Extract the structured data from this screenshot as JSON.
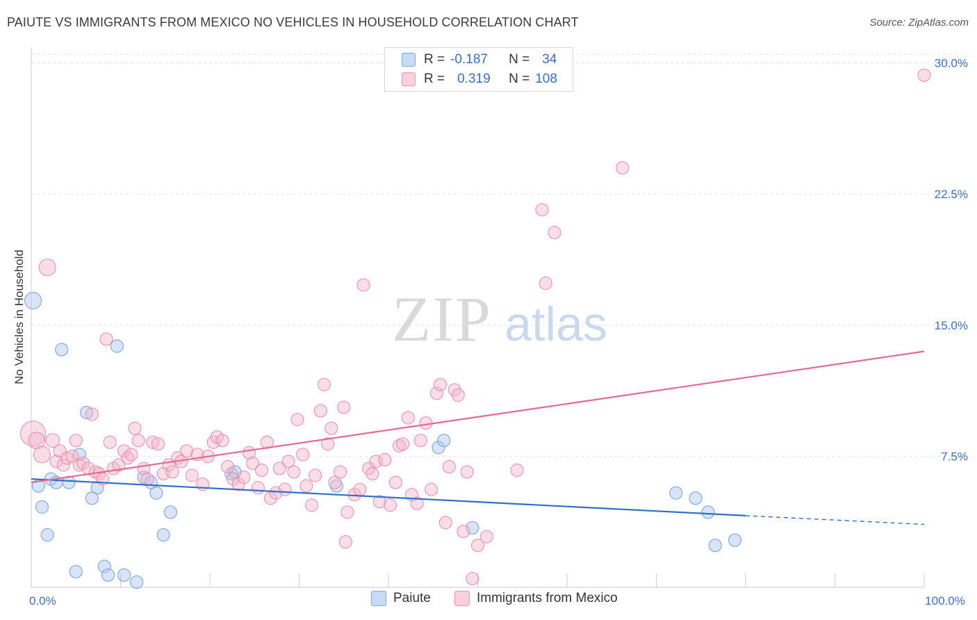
{
  "title": "PAIUTE VS IMMIGRANTS FROM MEXICO NO VEHICLES IN HOUSEHOLD CORRELATION CHART",
  "source": "Source: ZipAtlas.com",
  "watermark": {
    "zip": "ZIP",
    "atlas": "atlas"
  },
  "legend": {
    "rows": [
      {
        "r_label": "R =",
        "r_value": "-0.187",
        "n_label": "N =",
        "n_value": "34",
        "color": "#aac6ee"
      },
      {
        "r_label": "R =",
        "r_value": "0.319",
        "n_label": "N =",
        "n_value": "108",
        "color": "#f4b6c9"
      }
    ]
  },
  "bottom_legend": [
    {
      "label": "Paiute",
      "color": "#aac6ee"
    },
    {
      "label": "Immigrants from Mexico",
      "color": "#f4b6c9"
    }
  ],
  "chart_data": {
    "type": "scatter",
    "title": "PAIUTE VS IMMIGRANTS FROM MEXICO NO VEHICLES IN HOUSEHOLD CORRELATION CHART",
    "xlabel": "",
    "ylabel": "No Vehicles in Household",
    "xlim": [
      0,
      100
    ],
    "ylim": [
      0,
      30.5
    ],
    "x_tick_labels": [
      {
        "value": 0,
        "label": "0.0%"
      },
      {
        "value": 100,
        "label": "100.0%"
      }
    ],
    "y_tick_labels": [
      {
        "value": 7.5,
        "label": "7.5%"
      },
      {
        "value": 15.0,
        "label": "15.0%"
      },
      {
        "value": 22.5,
        "label": "22.5%"
      },
      {
        "value": 30.0,
        "label": "30.0%"
      }
    ],
    "grid": true,
    "legend_position": "top-center",
    "series": [
      {
        "name": "Paiute",
        "color": "#aac6ee",
        "stroke": "#6f9ee0",
        "trend_color": "#2f6fc6",
        "trend": {
          "x0": 0,
          "y0": 6.2,
          "x1": 80,
          "y1": 4.1,
          "dash_to_x": 100,
          "dash_to_y": 3.6
        },
        "points": [
          [
            0.2,
            16.4,
            12
          ],
          [
            0.8,
            5.8,
            9
          ],
          [
            1.2,
            4.6,
            9
          ],
          [
            1.8,
            3.0,
            9
          ],
          [
            2.2,
            6.2,
            9
          ],
          [
            2.8,
            6.0,
            9
          ],
          [
            3.4,
            13.6,
            9
          ],
          [
            4.2,
            6.0,
            9
          ],
          [
            5.0,
            0.9,
            9
          ],
          [
            6.2,
            10.0,
            9
          ],
          [
            6.8,
            5.1,
            9
          ],
          [
            7.4,
            5.7,
            9
          ],
          [
            8.2,
            1.2,
            9
          ],
          [
            8.6,
            0.7,
            9
          ],
          [
            9.6,
            13.8,
            9
          ],
          [
            10.4,
            0.7,
            9
          ],
          [
            11.8,
            0.3,
            9
          ],
          [
            12.6,
            6.3,
            9
          ],
          [
            13.4,
            6.0,
            9
          ],
          [
            14.0,
            5.4,
            9
          ],
          [
            14.8,
            3.0,
            9
          ],
          [
            15.6,
            4.3,
            9
          ],
          [
            22.4,
            6.5,
            9
          ],
          [
            22.8,
            6.6,
            9
          ],
          [
            34.2,
            5.8,
            9
          ],
          [
            45.6,
            8.0,
            9
          ],
          [
            46.2,
            8.4,
            9
          ],
          [
            49.4,
            3.4,
            9
          ],
          [
            72.2,
            5.4,
            9
          ],
          [
            74.4,
            5.1,
            9
          ],
          [
            75.8,
            4.3,
            9
          ],
          [
            76.6,
            2.4,
            9
          ],
          [
            78.8,
            2.7,
            9
          ],
          [
            5.4,
            7.6,
            9
          ]
        ]
      },
      {
        "name": "Immigrants from Mexico",
        "color": "#f4b6c9",
        "stroke": "#e98aa8",
        "trend_color": "#e46a93",
        "trend": {
          "x0": 0,
          "y0": 6.0,
          "x1": 100,
          "y1": 13.5
        },
        "points": [
          [
            0.2,
            8.8,
            18
          ],
          [
            0.6,
            8.4,
            12
          ],
          [
            1.2,
            7.6,
            12
          ],
          [
            1.8,
            18.3,
            12
          ],
          [
            2.4,
            8.4,
            10
          ],
          [
            2.8,
            7.2,
            9
          ],
          [
            3.2,
            7.8,
            9
          ],
          [
            3.6,
            7.0,
            9
          ],
          [
            4.0,
            7.4,
            9
          ],
          [
            4.6,
            7.5,
            9
          ],
          [
            5.0,
            8.4,
            9
          ],
          [
            5.4,
            7.0,
            9
          ],
          [
            5.8,
            7.1,
            9
          ],
          [
            6.4,
            6.8,
            9
          ],
          [
            6.8,
            9.9,
            9
          ],
          [
            7.2,
            6.6,
            9
          ],
          [
            7.6,
            6.5,
            9
          ],
          [
            8.0,
            6.2,
            9
          ],
          [
            8.4,
            14.2,
            9
          ],
          [
            8.8,
            8.3,
            9
          ],
          [
            9.2,
            6.8,
            9
          ],
          [
            9.8,
            7.0,
            9
          ],
          [
            10.4,
            7.8,
            9
          ],
          [
            10.8,
            7.4,
            9
          ],
          [
            11.2,
            7.6,
            9
          ],
          [
            11.6,
            9.1,
            9
          ],
          [
            12.0,
            8.4,
            9
          ],
          [
            12.6,
            6.8,
            9
          ],
          [
            13.0,
            6.2,
            9
          ],
          [
            13.6,
            8.3,
            9
          ],
          [
            14.2,
            8.2,
            9
          ],
          [
            14.8,
            6.5,
            9
          ],
          [
            15.4,
            7.0,
            9
          ],
          [
            15.8,
            6.6,
            9
          ],
          [
            16.4,
            7.4,
            9
          ],
          [
            16.8,
            7.2,
            9
          ],
          [
            17.4,
            7.8,
            9
          ],
          [
            18.0,
            6.4,
            9
          ],
          [
            18.6,
            7.6,
            9
          ],
          [
            19.2,
            5.9,
            9
          ],
          [
            19.8,
            7.5,
            9
          ],
          [
            20.4,
            8.3,
            9
          ],
          [
            20.8,
            8.6,
            9
          ],
          [
            21.4,
            8.4,
            9
          ],
          [
            22.0,
            6.9,
            9
          ],
          [
            22.6,
            6.2,
            9
          ],
          [
            23.2,
            5.9,
            9
          ],
          [
            23.8,
            6.3,
            9
          ],
          [
            24.4,
            7.7,
            9
          ],
          [
            24.8,
            7.1,
            9
          ],
          [
            25.4,
            5.7,
            9
          ],
          [
            25.8,
            6.7,
            9
          ],
          [
            26.4,
            8.3,
            9
          ],
          [
            26.8,
            5.1,
            9
          ],
          [
            27.4,
            5.4,
            9
          ],
          [
            27.8,
            6.8,
            9
          ],
          [
            28.4,
            5.6,
            9
          ],
          [
            28.8,
            7.2,
            9
          ],
          [
            29.4,
            6.6,
            9
          ],
          [
            29.8,
            9.6,
            9
          ],
          [
            30.4,
            7.6,
            9
          ],
          [
            30.8,
            5.8,
            9
          ],
          [
            31.4,
            4.7,
            9
          ],
          [
            31.8,
            6.4,
            9
          ],
          [
            32.4,
            10.1,
            9
          ],
          [
            32.8,
            11.6,
            9
          ],
          [
            33.2,
            8.2,
            9
          ],
          [
            33.6,
            9.1,
            9
          ],
          [
            34.0,
            6.0,
            9
          ],
          [
            34.6,
            6.6,
            9
          ],
          [
            35.0,
            10.3,
            9
          ],
          [
            35.4,
            4.3,
            9
          ],
          [
            36.2,
            5.3,
            9
          ],
          [
            36.8,
            5.6,
            9
          ],
          [
            37.2,
            17.3,
            9
          ],
          [
            37.8,
            6.8,
            9
          ],
          [
            38.2,
            6.5,
            9
          ],
          [
            38.6,
            7.2,
            9
          ],
          [
            39.0,
            4.9,
            9
          ],
          [
            39.6,
            7.3,
            9
          ],
          [
            40.2,
            4.7,
            9
          ],
          [
            40.8,
            6.0,
            9
          ],
          [
            41.2,
            8.1,
            9
          ],
          [
            41.6,
            8.2,
            9
          ],
          [
            42.2,
            9.7,
            9
          ],
          [
            42.6,
            5.3,
            9
          ],
          [
            43.2,
            4.8,
            9
          ],
          [
            43.6,
            8.4,
            9
          ],
          [
            44.2,
            9.4,
            9
          ],
          [
            44.8,
            5.6,
            9
          ],
          [
            45.4,
            11.1,
            9
          ],
          [
            45.8,
            11.6,
            9
          ],
          [
            46.4,
            3.7,
            9
          ],
          [
            46.8,
            6.9,
            9
          ],
          [
            47.4,
            11.3,
            9
          ],
          [
            47.8,
            11.0,
            9
          ],
          [
            48.4,
            3.2,
            9
          ],
          [
            48.8,
            6.6,
            9
          ],
          [
            49.4,
            0.5,
            9
          ],
          [
            50.0,
            2.4,
            9
          ],
          [
            51.0,
            2.9,
            9
          ],
          [
            54.4,
            6.7,
            9
          ],
          [
            57.2,
            21.6,
            9
          ],
          [
            57.6,
            17.4,
            9
          ],
          [
            58.6,
            20.3,
            9
          ],
          [
            66.2,
            24.0,
            9
          ],
          [
            100.0,
            29.3,
            9
          ],
          [
            35.2,
            2.6,
            9
          ]
        ]
      }
    ]
  }
}
